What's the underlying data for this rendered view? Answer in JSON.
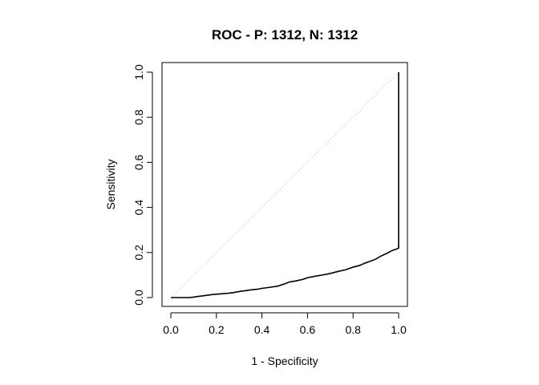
{
  "chart_data": {
    "type": "line",
    "title": "ROC - P: 1312, N: 1312",
    "xlabel": "1 - Specificity",
    "ylabel": "Sensitivity",
    "xlim": [
      0,
      1
    ],
    "ylim": [
      0,
      1
    ],
    "x_ticks": [
      "0.0",
      "0.2",
      "0.4",
      "0.6",
      "0.8",
      "1.0"
    ],
    "y_ticks": [
      "0.0",
      "0.2",
      "0.4",
      "0.6",
      "0.8",
      "1.0"
    ],
    "grid": false,
    "legend": "none",
    "series": [
      {
        "x": [
          0.0,
          0.02,
          0.05,
          0.08,
          0.1,
          0.12,
          0.15,
          0.18,
          0.2,
          0.25,
          0.28,
          0.3,
          0.33,
          0.35,
          0.38,
          0.4,
          0.43,
          0.47,
          0.5,
          0.52,
          0.55,
          0.58,
          0.6,
          0.63,
          0.67,
          0.7,
          0.73,
          0.77,
          0.8,
          0.83,
          0.85,
          0.88,
          0.9,
          0.92,
          0.95,
          0.97,
          0.99,
          1.0,
          1.0
        ],
        "y": [
          0.0,
          0.0,
          0.0,
          0.0,
          0.002,
          0.005,
          0.009,
          0.013,
          0.015,
          0.019,
          0.023,
          0.027,
          0.031,
          0.034,
          0.037,
          0.041,
          0.045,
          0.051,
          0.061,
          0.069,
          0.074,
          0.081,
          0.088,
          0.094,
          0.101,
          0.107,
          0.115,
          0.124,
          0.135,
          0.143,
          0.152,
          0.163,
          0.171,
          0.183,
          0.197,
          0.208,
          0.215,
          0.22,
          1.0
        ]
      }
    ],
    "reference_line": {
      "x": [
        0,
        1
      ],
      "y": [
        0,
        1
      ],
      "style": "dotted",
      "color": "#b8b8b8"
    },
    "line_color": "#000000"
  }
}
